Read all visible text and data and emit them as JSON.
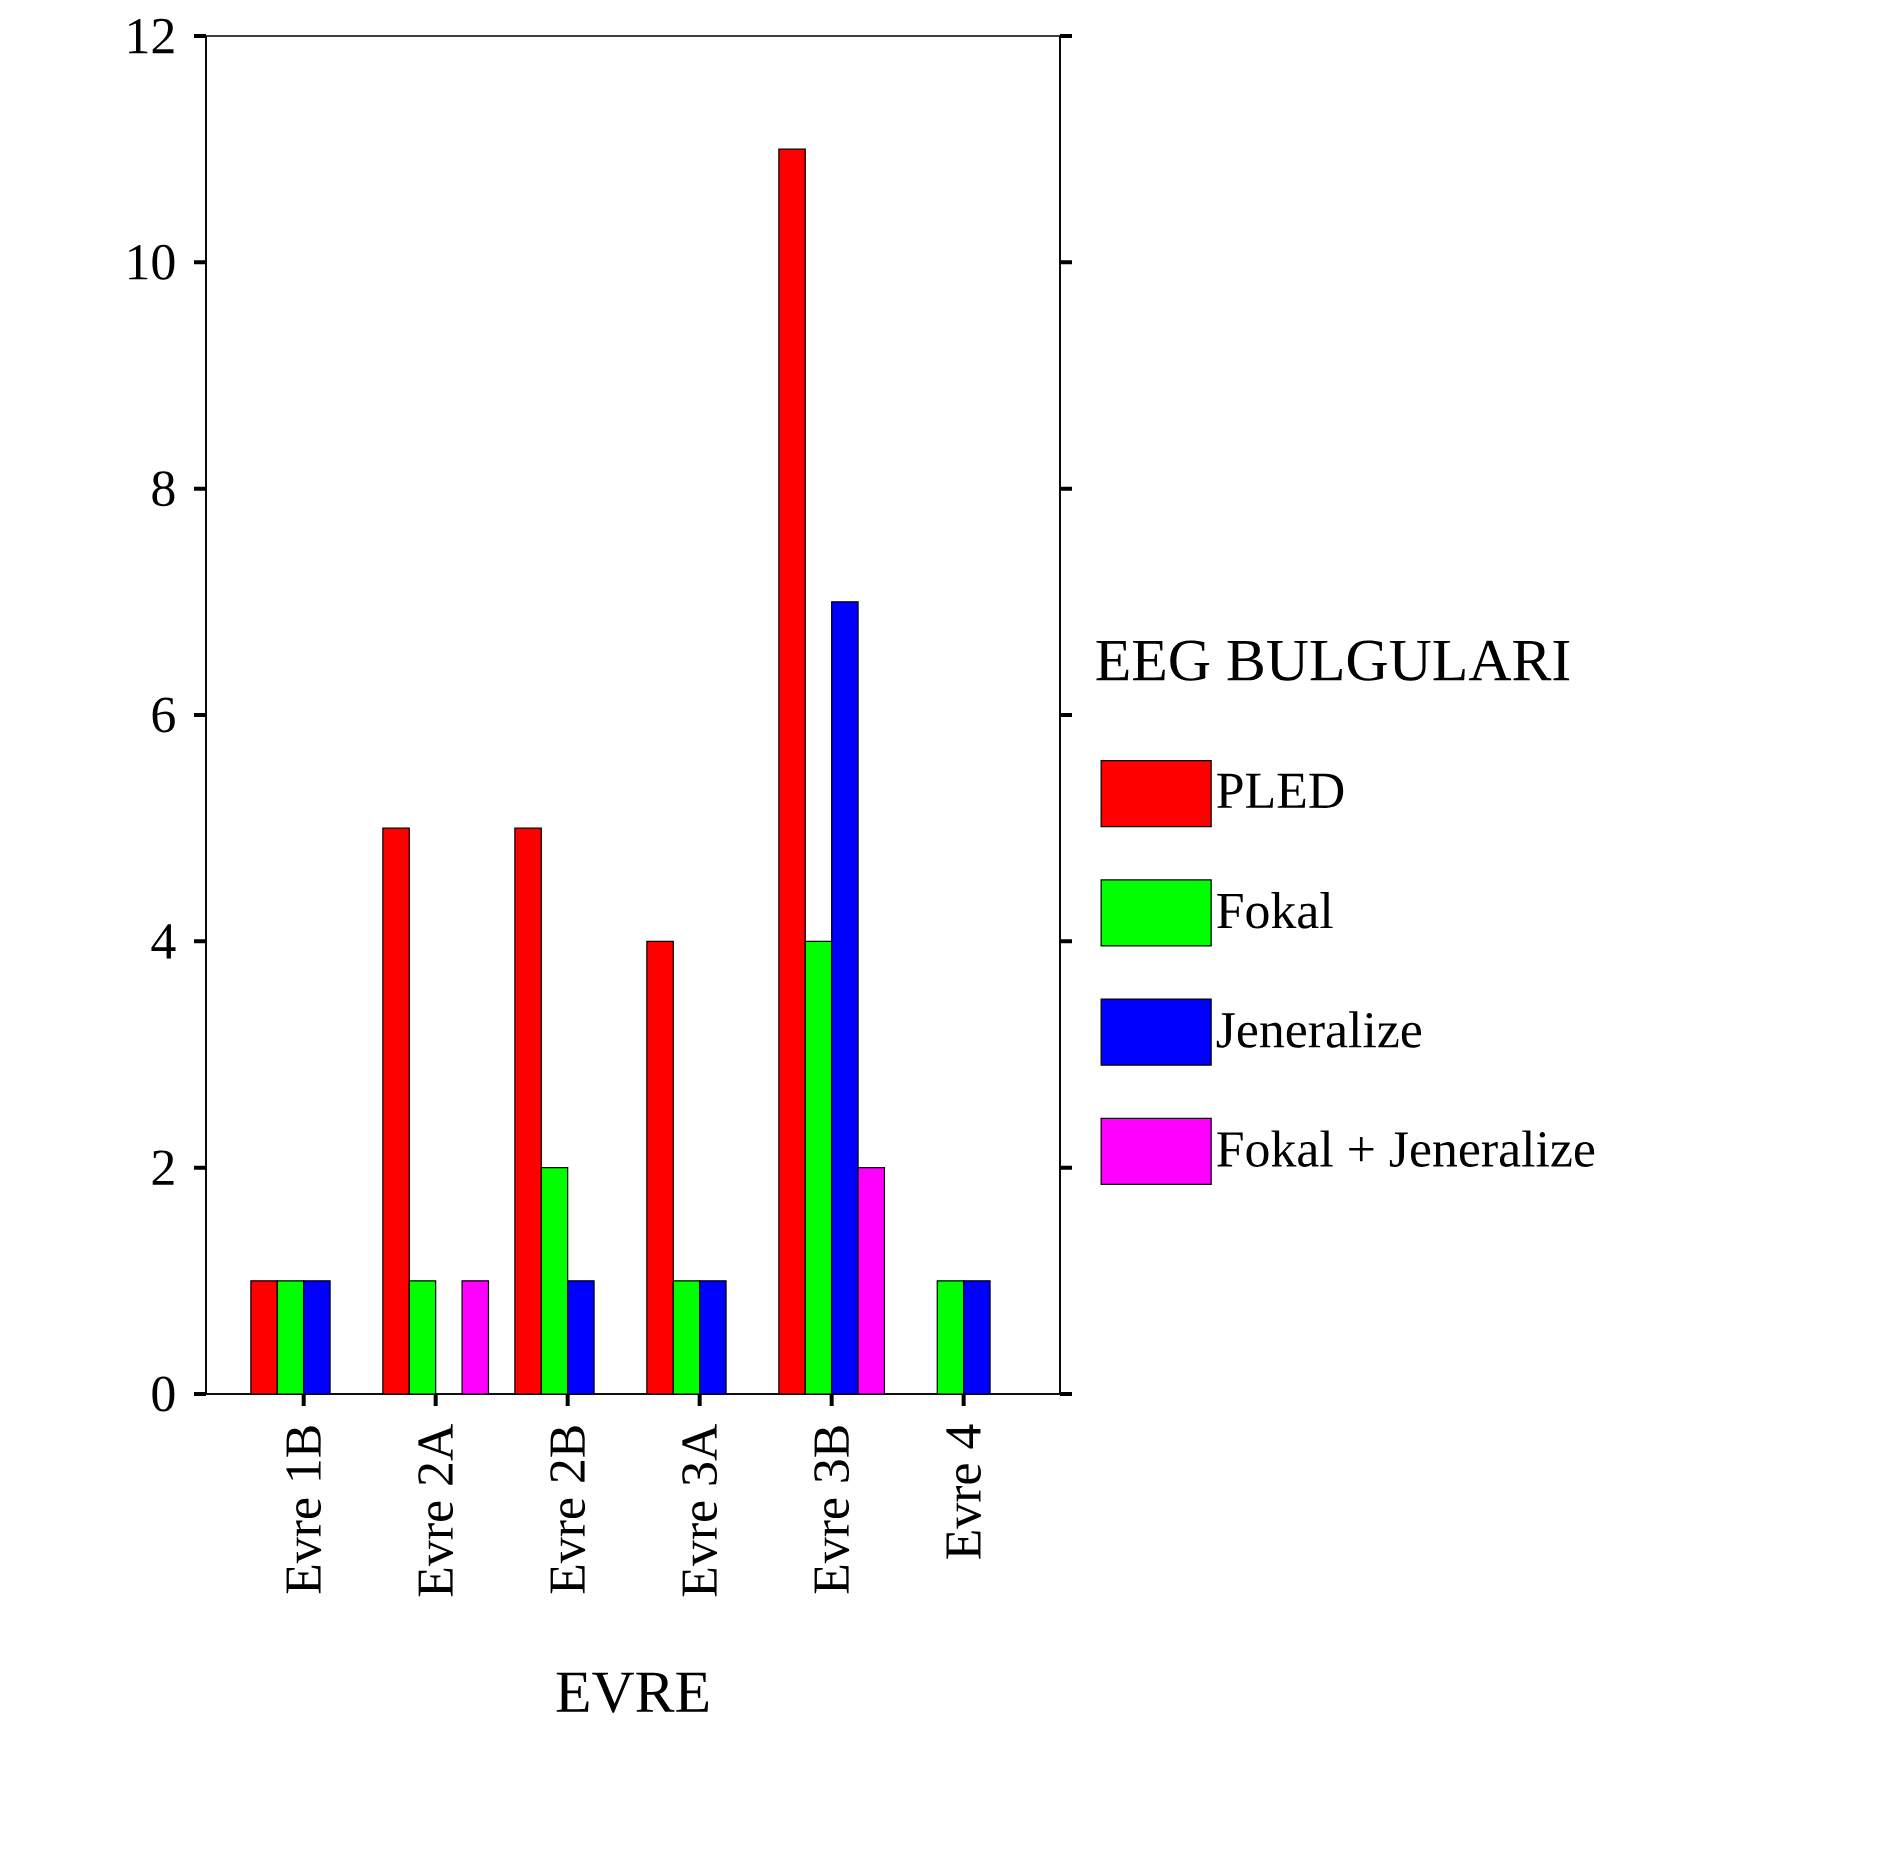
{
  "chart_data": {
    "type": "bar",
    "xlabel": "EVRE",
    "legend_title": "EEG BULGULARI",
    "legend": "right",
    "categories": [
      "Evre 1B",
      "Evre 2A",
      "Evre 2B",
      "Evre 3A",
      "Evre 3B",
      "Evre 4"
    ],
    "series": [
      {
        "name": "PLED",
        "color": "#ff0000",
        "values": [
          1,
          5,
          5,
          4,
          11,
          null
        ]
      },
      {
        "name": "Fokal",
        "color": "#00ff00",
        "values": [
          1,
          1,
          2,
          1,
          4,
          1
        ]
      },
      {
        "name": "Jeneralize",
        "color": "#0000ff",
        "values": [
          1,
          null,
          1,
          1,
          7,
          1
        ]
      },
      {
        "name": "Fokal + Jeneralize",
        "color": "#ff00ff",
        "values": [
          null,
          1,
          null,
          null,
          2,
          null
        ]
      }
    ],
    "ylim": [
      0,
      12
    ],
    "yticks": [
      0,
      2,
      4,
      6,
      8,
      10,
      12
    ]
  }
}
